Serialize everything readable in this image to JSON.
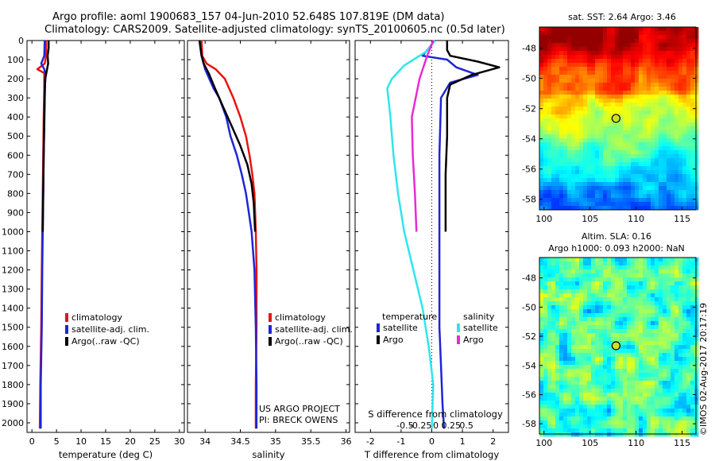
{
  "header": {
    "line1": "Argo profile: aoml 1900683_157 04-Jun-2010 52.648S 107.819E (DM data)",
    "line2": "Climatology: CARS2009. Satellite-adjusted climatology: synTS_20100605.nc (0.5d later)"
  },
  "colors": {
    "clim": "#e8140f",
    "sat": "#1f25d6",
    "argo": "#000000",
    "sat_s": "#2ee6ec",
    "argo_s": "#e82ad6"
  },
  "chart_data": [
    {
      "id": "temperature",
      "type": "line",
      "xlabel": "temperature (deg C)",
      "ylabel": "",
      "xlim": [
        -1,
        31
      ],
      "ylim": [
        2050,
        0
      ],
      "xticks": [
        0,
        5,
        10,
        15,
        20,
        25,
        30
      ],
      "yticks": [
        0,
        100,
        200,
        300,
        400,
        500,
        600,
        700,
        800,
        900,
        1000,
        1100,
        1200,
        1300,
        1400,
        1500,
        1600,
        1700,
        1800,
        1900,
        2000
      ],
      "legend": {
        "placement": "bottom-center",
        "entries": [
          "climatology",
          "satellite-adj. clim.",
          "Argo(..raw -QC)"
        ]
      },
      "series": [
        {
          "name": "climatology",
          "color_key": "clim",
          "x": [
            2.9,
            2.9,
            2.6,
            1.1,
            2.5,
            2.5,
            2.4,
            2.3,
            2.2,
            2.1,
            2.0,
            1.9,
            1.7,
            1.6
          ],
          "y": [
            0,
            80,
            120,
            150,
            170,
            250,
            400,
            600,
            800,
            1000,
            1200,
            1500,
            1800,
            2030
          ]
        },
        {
          "name": "satellite-adj. clim.",
          "color_key": "sat",
          "x": [
            2.6,
            2.5,
            1.9,
            2.5,
            2.8,
            2.6,
            2.5,
            2.4,
            2.3,
            2.2,
            2.1,
            2.0,
            1.8,
            1.8
          ],
          "y": [
            0,
            80,
            120,
            150,
            180,
            250,
            400,
            600,
            800,
            1000,
            1200,
            1500,
            1800,
            2030
          ]
        },
        {
          "name": "Argo(..raw -QC)",
          "color_key": "argo",
          "x": [
            3.4,
            3.4,
            3.2,
            3.3,
            3.0,
            2.7,
            2.6,
            2.5,
            2.4,
            2.3,
            2.2
          ],
          "y": [
            0,
            40,
            80,
            120,
            160,
            200,
            300,
            450,
            600,
            800,
            1000
          ]
        }
      ]
    },
    {
      "id": "salinity",
      "type": "line",
      "xlabel": "salinity",
      "ylabel": "",
      "xlim": [
        33.75,
        36.05
      ],
      "ylim": [
        2050,
        0
      ],
      "xticks": [
        34,
        34.5,
        35,
        35.5,
        36
      ],
      "legend": {
        "placement": "bottom-right",
        "entries": [
          "climatology",
          "satellite-adj. clim.",
          "Argo(..raw -QC)"
        ]
      },
      "annotation": [
        "US ARGO PROJECT",
        "PI: BRECK OWENS"
      ],
      "series": [
        {
          "name": "climatology",
          "color_key": "clim",
          "x": [
            33.95,
            33.96,
            34.02,
            34.15,
            34.28,
            34.4,
            34.5,
            34.58,
            34.63,
            34.67,
            34.7,
            34.72,
            34.73,
            34.73,
            34.72,
            34.72
          ],
          "y": [
            0,
            80,
            120,
            150,
            200,
            300,
            400,
            500,
            600,
            700,
            800,
            1000,
            1200,
            1500,
            1800,
            2030
          ]
        },
        {
          "name": "satellite-adj. clim.",
          "color_key": "sat",
          "x": [
            33.92,
            33.95,
            34.0,
            34.06,
            34.12,
            34.2,
            34.3,
            34.36,
            34.45,
            34.52,
            34.58,
            34.62,
            34.66,
            34.7,
            34.72,
            34.73,
            34.73
          ],
          "y": [
            0,
            80,
            150,
            200,
            250,
            300,
            400,
            500,
            600,
            700,
            800,
            900,
            1000,
            1200,
            1500,
            1800,
            2030
          ]
        },
        {
          "name": "Argo(..raw -QC)",
          "color_key": "argo",
          "x": [
            33.92,
            33.95,
            33.98,
            34.05,
            34.14,
            34.26,
            34.38,
            34.5,
            34.6,
            34.66,
            34.69,
            34.71
          ],
          "y": [
            0,
            80,
            120,
            170,
            250,
            350,
            450,
            550,
            650,
            750,
            850,
            1000
          ]
        }
      ]
    },
    {
      "id": "difference",
      "type": "line",
      "xlabel": "T difference from climatology",
      "xlabel_top": "S difference from climatology",
      "ylabel": "",
      "xlim": [
        -2.5,
        2.5
      ],
      "ylim": [
        2050,
        0
      ],
      "xticks": [
        -2,
        -1,
        0,
        1,
        2
      ],
      "s_xticks": [
        "-0.5",
        "-0.25",
        "0",
        "0.25",
        "0.5"
      ],
      "legend": {
        "placement": "bottom",
        "headers": [
          "temperature",
          "salinity"
        ],
        "entries": [
          "satellite",
          "Argo",
          "satellite",
          "Argo"
        ]
      },
      "series": [
        {
          "name": "temperature satellite",
          "color_key": "sat",
          "x": [
            0.1,
            -0.3,
            0.5,
            0.8,
            1.5,
            0.6,
            0.3,
            0.25,
            0.25,
            0.25,
            0.25,
            0.3,
            0.35,
            0.4
          ],
          "y": [
            0,
            80,
            100,
            140,
            180,
            220,
            300,
            600,
            900,
            1200,
            1500,
            1700,
            1900,
            2030
          ]
        },
        {
          "name": "temperature Argo",
          "color_key": "argo",
          "x": [
            0.5,
            0.5,
            0.6,
            1.5,
            2.2,
            1.3,
            0.6,
            0.5,
            0.5,
            0.45,
            0.45
          ],
          "y": [
            0,
            50,
            80,
            110,
            140,
            180,
            230,
            300,
            500,
            700,
            1000
          ]
        },
        {
          "name": "salinity satellite",
          "color_key": "sat_s",
          "x": [
            0.1,
            -0.2,
            -0.9,
            -1.3,
            -1.45,
            -1.35,
            -1.25,
            -1.1,
            -0.9,
            -0.6,
            -0.3,
            -0.1,
            0.05,
            0.0
          ],
          "y": [
            0,
            60,
            130,
            200,
            250,
            400,
            600,
            800,
            1000,
            1200,
            1400,
            1600,
            1800,
            2030
          ]
        },
        {
          "name": "salinity Argo",
          "color_key": "argo_s",
          "x": [
            0.05,
            -0.15,
            -0.4,
            -0.65,
            -0.62,
            -0.55,
            -0.5
          ],
          "y": [
            0,
            80,
            200,
            400,
            600,
            800,
            1000
          ]
        }
      ]
    },
    {
      "id": "sst-map",
      "type": "heatmap",
      "title": "sat. SST: 2.64 Argo: 3.46",
      "xticks": [
        100,
        105,
        110,
        115
      ],
      "yticks": [
        -48,
        -50,
        -52,
        -54,
        -56,
        -58
      ],
      "xlim": [
        99.5,
        116.5
      ],
      "ylim": [
        -58.7,
        -46.6
      ],
      "marker": {
        "lon": 107.819,
        "lat": -52.648
      }
    },
    {
      "id": "sla-map",
      "type": "heatmap",
      "title": [
        "Altim. SLA: 0.16",
        "Argo h1000: 0.093 h2000: NaN"
      ],
      "xticks": [
        100,
        105,
        110,
        115
      ],
      "yticks": [
        -48,
        -50,
        -52,
        -54,
        -56,
        -58
      ],
      "xlim": [
        99.5,
        116.5
      ],
      "ylim": [
        -58.7,
        -46.6
      ],
      "marker": {
        "lon": 107.819,
        "lat": -52.648
      },
      "side_label": "©IMOS 02-Aug-2017 20:17:19"
    }
  ]
}
